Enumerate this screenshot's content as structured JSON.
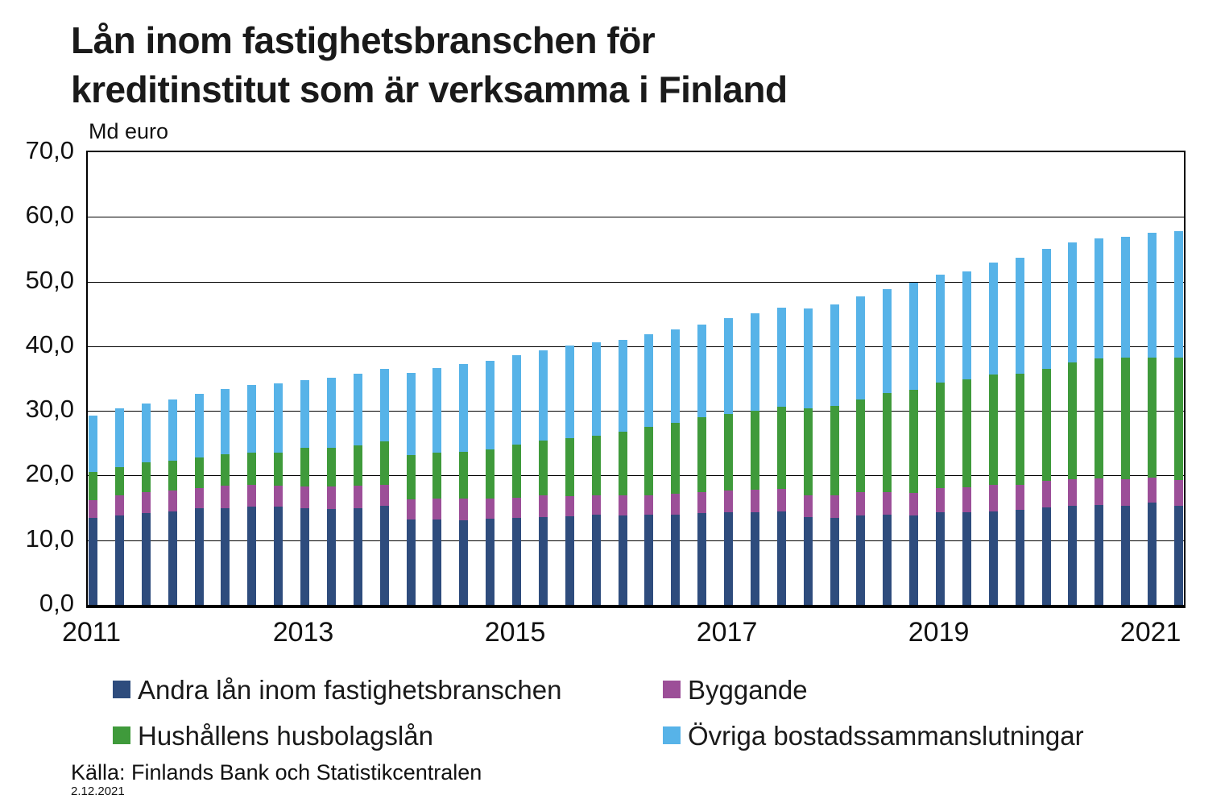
{
  "title": {
    "line1": "Lån inom fastighetsbranschen för",
    "line2": "kreditinstitut som är verksamma i Finland"
  },
  "unit_label": "Md euro",
  "source": "Källa: Finlands Bank och Statistikcentralen",
  "date_stamp": "2.12.2021",
  "y_axis": {
    "tick_labels": [
      "70,0",
      "60,0",
      "50,0",
      "40,0",
      "30,0",
      "20,0",
      "10,0",
      "0,0"
    ],
    "tick_values": [
      70,
      60,
      50,
      40,
      30,
      20,
      10,
      0
    ]
  },
  "x_axis": {
    "tick_labels": [
      "2011",
      "2013",
      "2015",
      "2017",
      "2019",
      "2021"
    ],
    "tick_bar_indices": [
      0,
      8,
      16,
      24,
      32,
      40
    ]
  },
  "chart_data": {
    "type": "bar",
    "stacked": true,
    "title": "Lån inom fastighetsbranschen för kreditinstitut som är verksamma i Finland",
    "ylabel": "Md euro",
    "ylim": [
      0,
      70
    ],
    "grid": true,
    "legend_position": "bottom",
    "bars_per_year": 4,
    "x_range_years": [
      2011,
      2021
    ],
    "num_bars": 42,
    "series": [
      {
        "name": "Andra lån inom fastighetsbranschen",
        "color": "#2E4C7D",
        "values": [
          13.5,
          13.8,
          14.2,
          14.5,
          14.9,
          15.0,
          15.2,
          15.2,
          15.0,
          14.8,
          14.9,
          15.3,
          13.2,
          13.2,
          13.1,
          13.3,
          13.4,
          13.6,
          13.7,
          14.0,
          13.8,
          13.9,
          14.0,
          14.2,
          14.3,
          14.3,
          14.4,
          13.6,
          13.5,
          13.8,
          13.9,
          13.8,
          14.3,
          14.3,
          14.5,
          14.7,
          15.1,
          15.3,
          15.4,
          15.3,
          15.8,
          15.3
        ]
      },
      {
        "name": "Byggande",
        "color": "#9C4F98",
        "values": [
          2.7,
          3.2,
          3.3,
          3.2,
          3.2,
          3.4,
          3.3,
          3.2,
          3.3,
          3.5,
          3.5,
          3.2,
          3.1,
          3.3,
          3.3,
          3.1,
          3.2,
          3.3,
          3.1,
          3.0,
          3.2,
          3.1,
          3.2,
          3.3,
          3.4,
          3.5,
          3.6,
          3.3,
          3.4,
          3.7,
          3.6,
          3.5,
          3.8,
          3.9,
          4.0,
          3.9,
          4.1,
          4.1,
          4.1,
          4.1,
          3.9,
          4.0
        ]
      },
      {
        "name": "Hushållens husbolagslån",
        "color": "#3F9A3B",
        "values": [
          4.4,
          4.3,
          4.5,
          4.6,
          4.7,
          4.9,
          5.0,
          5.1,
          6.0,
          6.0,
          6.3,
          6.8,
          6.9,
          7.1,
          7.3,
          7.6,
          8.2,
          8.5,
          9.0,
          9.2,
          9.8,
          10.5,
          10.9,
          11.5,
          11.8,
          12.2,
          12.7,
          13.5,
          13.9,
          14.3,
          15.3,
          15.9,
          16.3,
          16.7,
          17.1,
          17.1,
          17.3,
          18.1,
          18.6,
          18.8,
          18.6,
          18.9
        ]
      },
      {
        "name": "Övriga bostadssammanslutningar",
        "color": "#57B3E8",
        "values": [
          8.7,
          9.1,
          9.2,
          9.5,
          9.8,
          10.1,
          10.5,
          10.7,
          10.4,
          10.8,
          11.1,
          11.2,
          12.7,
          13.0,
          13.5,
          13.7,
          13.8,
          14.0,
          14.3,
          14.4,
          14.2,
          14.4,
          14.5,
          14.4,
          14.9,
          15.1,
          15.3,
          15.5,
          15.7,
          15.9,
          16.0,
          16.6,
          16.7,
          16.7,
          17.4,
          18.0,
          18.6,
          18.6,
          18.6,
          18.7,
          19.3,
          19.6
        ]
      }
    ]
  },
  "legend_layout": {
    "rows": [
      [
        {
          "series": 0,
          "x": 140,
          "y": 838
        },
        {
          "series": 1,
          "x": 823,
          "y": 838
        }
      ],
      [
        {
          "series": 2,
          "x": 140,
          "y": 895
        },
        {
          "series": 3,
          "x": 823,
          "y": 895
        }
      ]
    ]
  }
}
